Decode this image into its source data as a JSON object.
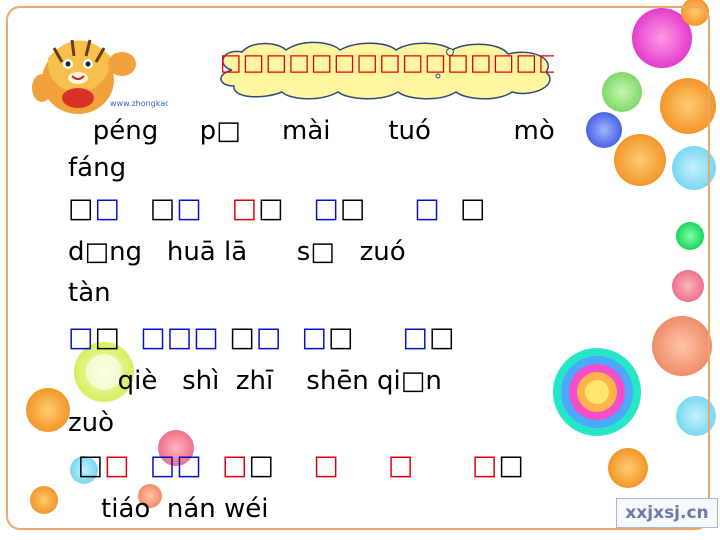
{
  "header": {
    "title": "□□□□□□□□□□□□□□□",
    "logo_caption": "www.zhongkao.com"
  },
  "lines": [
    {
      "type": "pinyin",
      "text": "   péng     p□     mài       tuó          mò"
    },
    {
      "type": "pinyin",
      "text": "fáng"
    },
    {
      "type": "hanzi",
      "segments": [
        {
          "t": "□",
          "c": "k"
        },
        {
          "t": "□",
          "c": "b"
        },
        {
          "t": "   ",
          "c": "k"
        },
        {
          "t": "□",
          "c": "k"
        },
        {
          "t": "□",
          "c": "b"
        },
        {
          "t": "   ",
          "c": "k"
        },
        {
          "t": "□",
          "c": "r"
        },
        {
          "t": "□",
          "c": "k"
        },
        {
          "t": "   ",
          "c": "k"
        },
        {
          "t": "□",
          "c": "b"
        },
        {
          "t": "□",
          "c": "k"
        },
        {
          "t": "     ",
          "c": "k"
        },
        {
          "t": "□",
          "c": "b"
        },
        {
          "t": "  ",
          "c": "k"
        },
        {
          "t": "□",
          "c": "k"
        }
      ]
    },
    {
      "type": "pinyin",
      "text": "d□ng   huā lā      s□   zuó"
    },
    {
      "type": "pinyin",
      "text": "tàn"
    },
    {
      "type": "hanzi",
      "segments": [
        {
          "t": "□",
          "c": "b"
        },
        {
          "t": "□",
          "c": "k"
        },
        {
          "t": "  ",
          "c": "k"
        },
        {
          "t": "□□□",
          "c": "b"
        },
        {
          "t": " ",
          "c": "k"
        },
        {
          "t": "□",
          "c": "k"
        },
        {
          "t": "□",
          "c": "b"
        },
        {
          "t": "  ",
          "c": "k"
        },
        {
          "t": "□",
          "c": "b"
        },
        {
          "t": "□",
          "c": "k"
        },
        {
          "t": "     ",
          "c": "k"
        },
        {
          "t": "□",
          "c": "b"
        },
        {
          "t": "□",
          "c": "k"
        }
      ]
    },
    {
      "type": "pinyin",
      "text": "      qiè   shì  zhī    shēn qi□n"
    },
    {
      "type": "pinyin",
      "text": "zuò"
    },
    {
      "type": "hanzi",
      "segments": [
        {
          "t": " ",
          "c": "k"
        },
        {
          "t": "□",
          "c": "k"
        },
        {
          "t": "□",
          "c": "r"
        },
        {
          "t": "  ",
          "c": "k"
        },
        {
          "t": "□□",
          "c": "b"
        },
        {
          "t": "  ",
          "c": "k"
        },
        {
          "t": "□",
          "c": "r"
        },
        {
          "t": "□",
          "c": "k"
        },
        {
          "t": "    ",
          "c": "k"
        },
        {
          "t": "□",
          "c": "r"
        },
        {
          "t": "     ",
          "c": "k"
        },
        {
          "t": "□",
          "c": "r"
        },
        {
          "t": "      ",
          "c": "k"
        },
        {
          "t": "□",
          "c": "r"
        },
        {
          "t": "□",
          "c": "k"
        }
      ]
    },
    {
      "type": "pinyin",
      "text": "    tiáo  nán wéi"
    }
  ],
  "watermark": "xxjxsj.cn",
  "colors": {
    "red": "#e0000c",
    "blue": "#0011cc",
    "black": "#000000",
    "border": "#e9a86a",
    "cloud": "#fff6a0"
  }
}
